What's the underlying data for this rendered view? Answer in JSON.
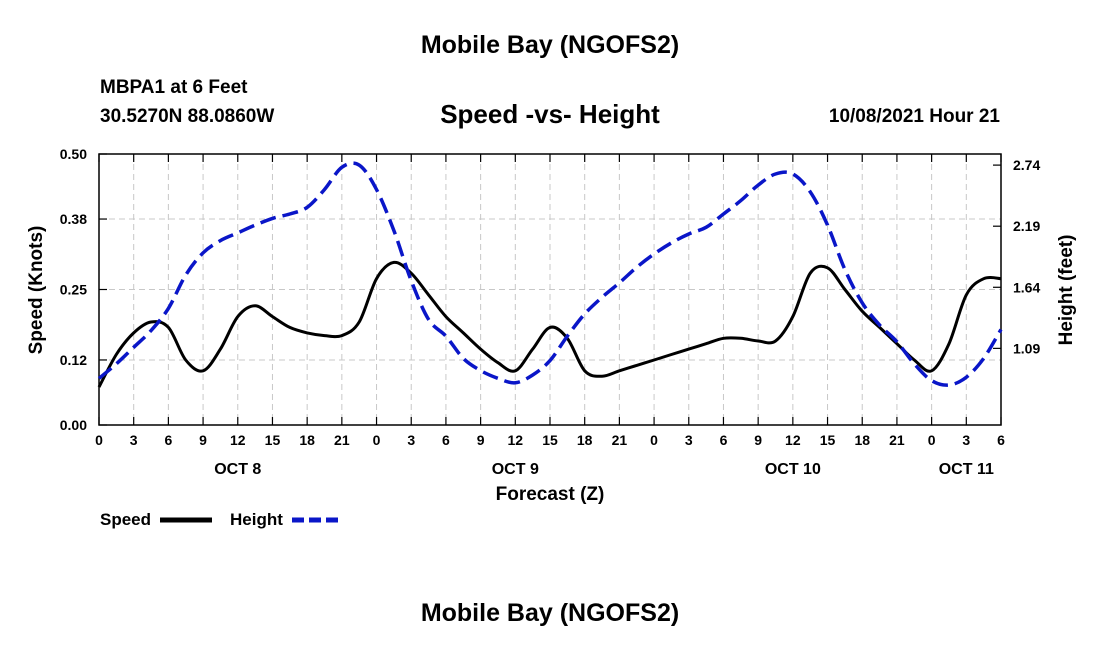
{
  "page": {
    "title_top": "Mobile Bay (NGOFS2)",
    "title_bottom": "Mobile Bay (NGOFS2)",
    "station": "MBPA1 at 6 Feet",
    "coords": "30.5270N  88.0860W",
    "subtitle": "Speed -vs- Height",
    "run_time": "10/08/2021 Hour 21"
  },
  "chart_data": {
    "type": "line",
    "title": "Speed -vs- Height",
    "xlabel": "Forecast (Z)",
    "ylabel_left": "Speed (Knots)",
    "ylabel_right": "Height (feet)",
    "x_range_hours": [
      0,
      78
    ],
    "y_left_range": [
      0,
      0.5
    ],
    "y_right_range": [
      0.4,
      2.84
    ],
    "grid": true,
    "x_tick_labels": [
      "0",
      "3",
      "6",
      "9",
      "12",
      "15",
      "18",
      "21",
      "0",
      "3",
      "6",
      "9",
      "12",
      "15",
      "18",
      "21",
      "0",
      "3",
      "6",
      "9",
      "12",
      "15",
      "18",
      "21",
      "0",
      "3",
      "6"
    ],
    "date_labels": [
      {
        "label": "OCT 8",
        "hour": 12
      },
      {
        "label": "OCT 9",
        "hour": 36
      },
      {
        "label": "OCT 10",
        "hour": 60
      },
      {
        "label": "OCT 11",
        "hour": 75
      }
    ],
    "y_left_ticks": [
      "0.00",
      "0.12",
      "0.25",
      "0.38",
      "0.50"
    ],
    "y_right_ticks": [
      "1.09",
      "1.64",
      "2.19",
      "2.74"
    ],
    "legend": [
      "Speed",
      "Height"
    ],
    "series": [
      {
        "name": "Speed",
        "axis": "left",
        "color": "#000000",
        "style": "solid",
        "x": [
          0,
          1.5,
          3,
          4.5,
          6,
          7.5,
          9,
          10.5,
          12,
          13.5,
          15,
          16.5,
          18,
          19.5,
          21,
          22.5,
          24,
          25.5,
          27,
          28.5,
          30,
          31.5,
          33,
          34.5,
          36,
          37.5,
          39,
          40.5,
          42,
          43.5,
          45,
          46.5,
          48,
          49.5,
          51,
          52.5,
          54,
          55.5,
          57,
          58.5,
          60,
          61.5,
          63,
          64.5,
          66,
          67.5,
          69,
          70.5,
          72,
          73.5,
          75,
          76.5,
          78
        ],
        "values": [
          0.07,
          0.13,
          0.17,
          0.19,
          0.18,
          0.12,
          0.1,
          0.14,
          0.2,
          0.22,
          0.2,
          0.18,
          0.17,
          0.165,
          0.165,
          0.19,
          0.27,
          0.3,
          0.28,
          0.24,
          0.2,
          0.17,
          0.14,
          0.115,
          0.1,
          0.14,
          0.18,
          0.16,
          0.1,
          0.09,
          0.1,
          0.11,
          0.12,
          0.13,
          0.14,
          0.15,
          0.16,
          0.16,
          0.155,
          0.155,
          0.2,
          0.28,
          0.29,
          0.25,
          0.21,
          0.18,
          0.15,
          0.12,
          0.1,
          0.15,
          0.24,
          0.27,
          0.27
        ]
      },
      {
        "name": "Height",
        "axis": "right",
        "color": "#0a16c8",
        "style": "dashed",
        "x": [
          0,
          1.5,
          3,
          4.5,
          6,
          7.5,
          9,
          10.5,
          12,
          13.5,
          15,
          16.5,
          18,
          19.5,
          21,
          22.5,
          24,
          25.5,
          27,
          28.5,
          30,
          31.5,
          33,
          34.5,
          36,
          37.5,
          39,
          40.5,
          42,
          43.5,
          45,
          46.5,
          48,
          49.5,
          51,
          52.5,
          54,
          55.5,
          57,
          58.5,
          60,
          61.5,
          63,
          64.5,
          66,
          67.5,
          69,
          70.5,
          72,
          73.5,
          75,
          76.5,
          78
        ],
        "values": [
          0.82,
          0.95,
          1.1,
          1.25,
          1.45,
          1.75,
          1.95,
          2.06,
          2.13,
          2.2,
          2.26,
          2.3,
          2.36,
          2.52,
          2.72,
          2.74,
          2.52,
          2.15,
          1.7,
          1.35,
          1.2,
          1.0,
          0.89,
          0.82,
          0.78,
          0.85,
          0.98,
          1.2,
          1.4,
          1.55,
          1.68,
          1.82,
          1.94,
          2.04,
          2.12,
          2.18,
          2.3,
          2.42,
          2.56,
          2.66,
          2.66,
          2.5,
          2.2,
          1.8,
          1.5,
          1.3,
          1.15,
          0.95,
          0.8,
          0.76,
          0.83,
          1.0,
          1.26
        ]
      }
    ]
  }
}
